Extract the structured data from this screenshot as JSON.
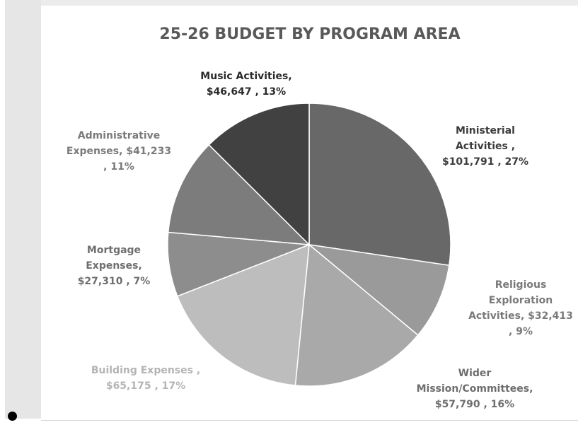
{
  "chart_data": {
    "type": "pie",
    "title": "25-26 BUDGET BY PROGRAM AREA",
    "slices": [
      {
        "label": "Ministerial Activities ,",
        "value": 101791,
        "value_text": "$101,791",
        "percent_text": "27%",
        "color": "#686868",
        "label_color": "#3c3c3c",
        "label_lines": [
          "Ministerial",
          "Activities ,",
          "$101,791 , 27%"
        ]
      },
      {
        "label": "Religious Exploration Activities,",
        "value": 32413,
        "value_text": "$32,413",
        "percent_text": "9%",
        "color": "#9a9a9a",
        "label_color": "#7a7a7a",
        "label_lines": [
          "Religious",
          "Exploration",
          "Activities,  $32,413",
          ", 9%"
        ]
      },
      {
        "label": "Wider Mission/Committees,",
        "value": 57790,
        "value_text": "$57,790",
        "percent_text": "16%",
        "color": "#a9a9a9",
        "label_color": "#6e6e6e",
        "label_lines": [
          "Wider",
          "Mission/Committees,",
          "$57,790 , 16%"
        ]
      },
      {
        "label": "Building Expenses ,",
        "value": 65175,
        "value_text": "$65,175",
        "percent_text": "17%",
        "color": "#bdbdbd",
        "label_color": "#b4b4b4",
        "label_lines": [
          "Building Expenses ,",
          "$65,175 , 17%"
        ]
      },
      {
        "label": "Mortgage Expenses,",
        "value": 27310,
        "value_text": "$27,310",
        "percent_text": "7%",
        "color": "#8d8d8d",
        "label_color": "#6e6e6e",
        "label_lines": [
          "Mortgage",
          "Expenses,",
          "$27,310 , 7%"
        ]
      },
      {
        "label": "Administrative Expenses,",
        "value": 41233,
        "value_text": "$41,233",
        "percent_text": "11%",
        "color": "#7c7c7c",
        "label_color": "#7a7a7a",
        "label_lines": [
          "Administrative",
          "Expenses,  $41,233",
          ", 11%"
        ]
      },
      {
        "label": "Music Activities,",
        "value": 46647,
        "value_text": "$46,647",
        "percent_text": "13%",
        "color": "#414141",
        "label_color": "#2a2a2a",
        "label_lines": [
          "Music Activities,",
          "$46,647 , 13%"
        ]
      }
    ]
  }
}
